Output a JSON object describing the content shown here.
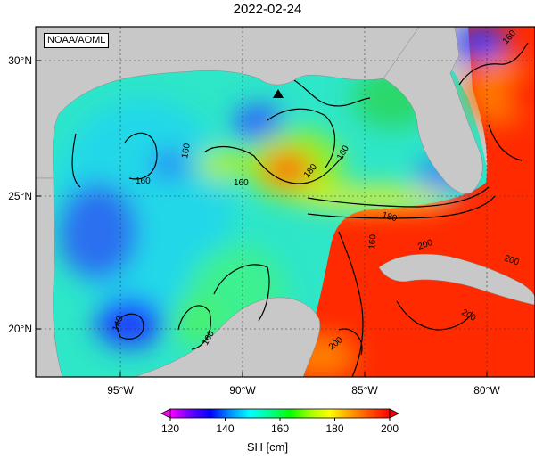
{
  "title": "2022-02-24",
  "credit": "NOAA/AOML",
  "map": {
    "lat_ticks": [
      "30°N",
      "25°N",
      "20°N"
    ],
    "lon_ticks": [
      "95°W",
      "90°W",
      "85°W",
      "80°W"
    ],
    "contour_labels": [
      "160",
      "160",
      "160",
      "140",
      "160",
      "180",
      "160",
      "180",
      "160",
      "200",
      "200",
      "200",
      "200",
      "160"
    ]
  },
  "colorbar": {
    "title": "SH [cm]",
    "ticks": [
      "120",
      "140",
      "160",
      "180",
      "200"
    ],
    "min": 120,
    "max": 200,
    "colors": [
      "#ff00ff",
      "#6a00ff",
      "#0000ff",
      "#0090ff",
      "#00ffff",
      "#00ff90",
      "#00ff00",
      "#a0ff00",
      "#ffff00",
      "#ffa000",
      "#ff5000",
      "#ff0000"
    ]
  },
  "colors": {
    "land": "#c8c8c8",
    "background": "#ffffff"
  }
}
